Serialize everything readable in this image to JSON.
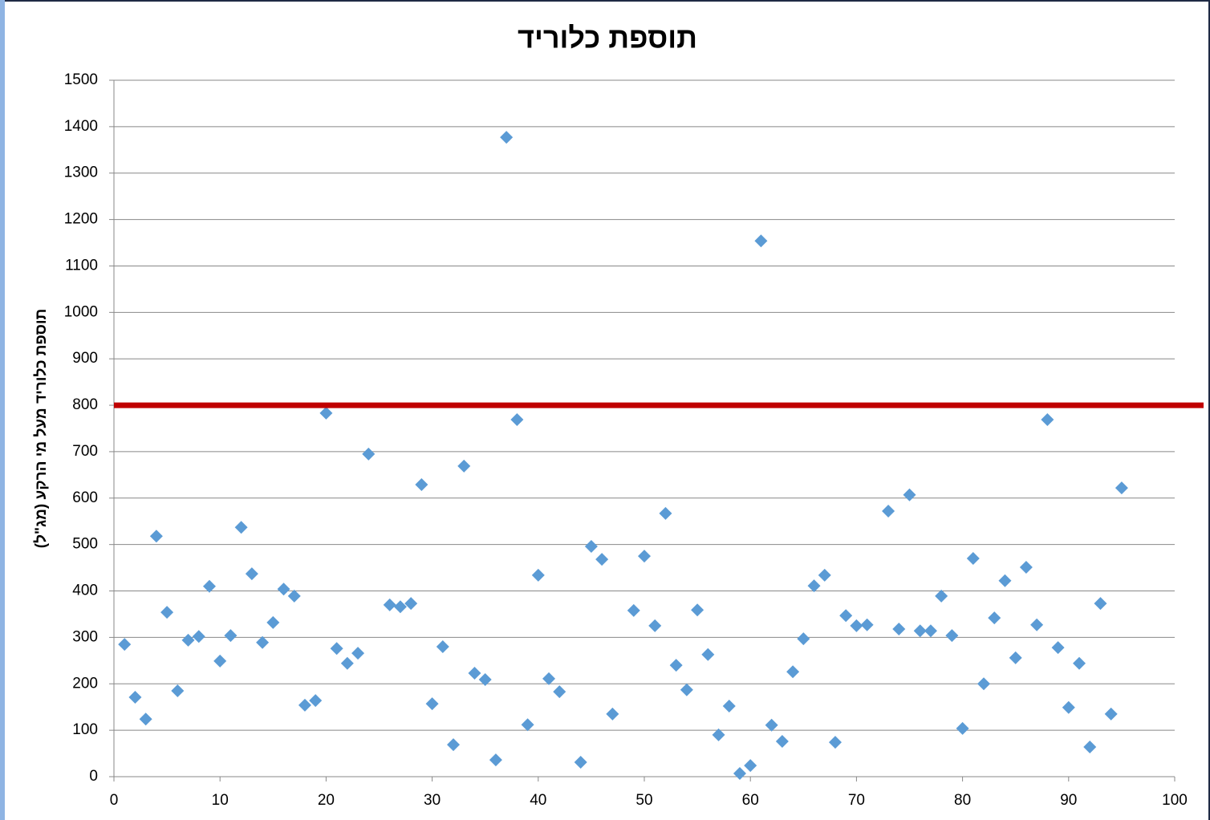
{
  "chart_data": {
    "type": "scatter",
    "title": "תוספת כלוריד",
    "y_label": "תוספת כלוריד מעל מי הרקע (מג\"ל)",
    "series": [
      {
        "color": "#5b9bd5",
        "x": [
          1,
          2,
          3,
          4,
          5,
          6,
          7,
          8,
          9,
          10,
          11,
          12,
          13,
          14,
          15,
          16,
          17,
          18,
          19,
          20,
          21,
          22,
          23,
          24,
          26,
          27,
          28,
          29,
          30,
          31,
          32,
          33,
          34,
          35,
          36,
          37,
          38,
          39,
          40,
          41,
          42,
          44,
          45,
          46,
          47,
          49,
          50,
          51,
          52,
          53,
          54,
          55,
          56,
          57,
          58,
          59,
          60,
          61,
          62,
          63,
          64,
          65,
          66,
          67,
          68,
          69,
          70,
          71,
          73,
          74,
          75,
          76,
          77,
          78,
          79,
          80,
          81,
          82,
          83,
          84,
          85,
          86,
          87,
          88,
          89,
          90,
          91,
          92,
          93,
          94,
          95
        ],
        "values": [
          285,
          171,
          124,
          518,
          354,
          185,
          294,
          302,
          410,
          249,
          304,
          537,
          437,
          289,
          332,
          404,
          389,
          154,
          164,
          783,
          276,
          244,
          266,
          695,
          370,
          366,
          373,
          629,
          157,
          280,
          69,
          669,
          223,
          209,
          36,
          1377,
          769,
          112,
          434,
          211,
          183,
          31,
          496,
          468,
          135,
          358,
          475,
          325,
          567,
          240,
          187,
          359,
          263,
          90,
          152,
          7,
          24,
          1154,
          111,
          76,
          226,
          297,
          411,
          434,
          74,
          347,
          325,
          327,
          572,
          318,
          607,
          314,
          314,
          389,
          304,
          104,
          470,
          200,
          342,
          422,
          256,
          451,
          327,
          769,
          278,
          149,
          244,
          64,
          373,
          135,
          622
        ]
      }
    ],
    "threshold": {
      "value": 800,
      "color": "#c00000"
    },
    "xlim": [
      0,
      100
    ],
    "xticks": [
      0,
      10,
      20,
      30,
      40,
      50,
      60,
      70,
      80,
      90,
      100
    ],
    "ylim": [
      0,
      1500
    ],
    "yticks": [
      0,
      100,
      200,
      300,
      400,
      500,
      600,
      700,
      800,
      900,
      1000,
      1100,
      1200,
      1300,
      1400,
      1500
    ],
    "grid": true
  }
}
